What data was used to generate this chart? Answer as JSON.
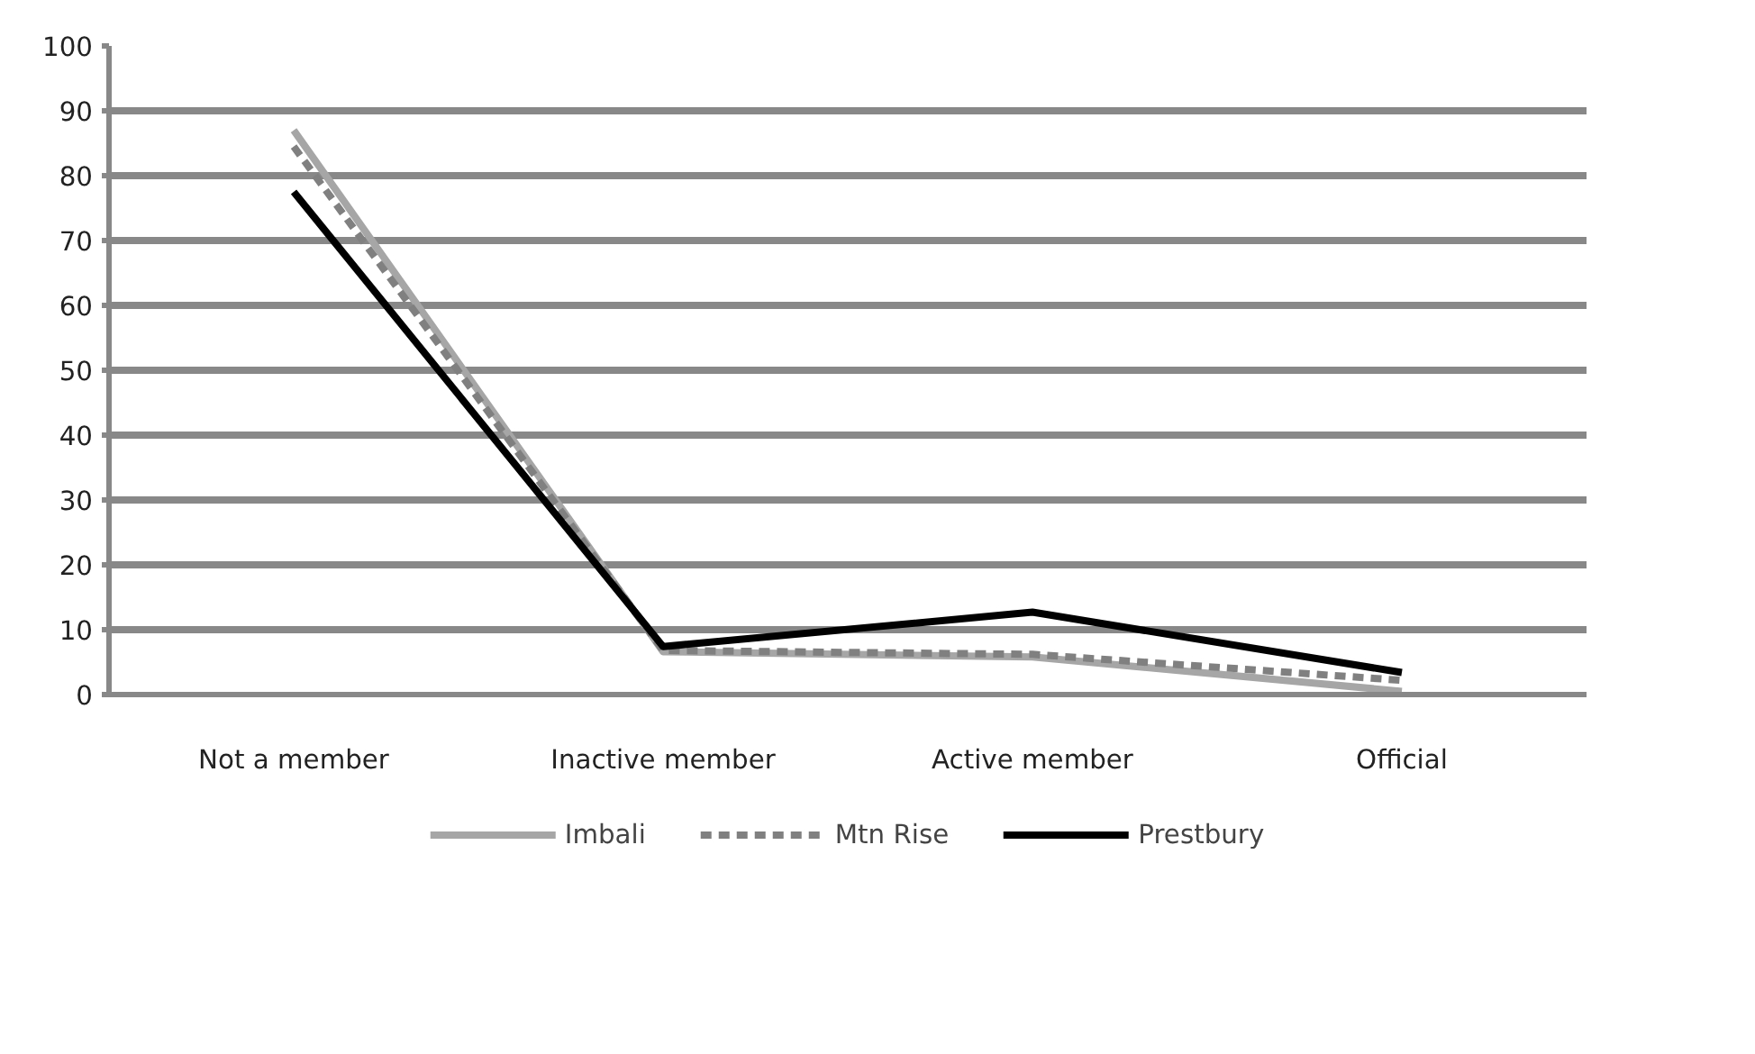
{
  "chart_data": {
    "type": "line",
    "categories": [
      "Not a member",
      "Inactive member",
      "Active member",
      "Official"
    ],
    "series": [
      {
        "name": "Imbali",
        "color": "#a6a6a6",
        "line_style": "solid",
        "values": [
          87,
          6.6,
          5.8,
          0.5
        ]
      },
      {
        "name": "Mtn Rise",
        "color": "#808080",
        "line_style": "dashed",
        "values": [
          84.5,
          6.8,
          6.2,
          2.2
        ]
      },
      {
        "name": "Prestbury",
        "color": "#000000",
        "line_style": "solid",
        "values": [
          77.5,
          7.4,
          12.7,
          3.4
        ]
      }
    ],
    "ylim": [
      0,
      100
    ],
    "yticks": [
      0,
      10,
      20,
      30,
      40,
      50,
      60,
      70,
      80,
      90,
      100
    ],
    "grid": "y",
    "legend": "bottom",
    "marker": "none"
  }
}
